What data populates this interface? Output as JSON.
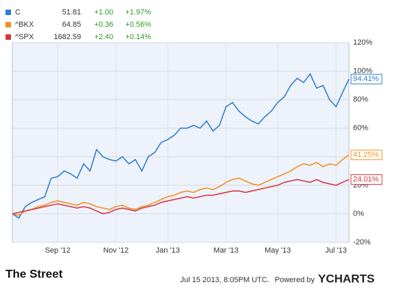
{
  "chart_data": {
    "type": "line",
    "categories": [
      null,
      null,
      null,
      null,
      null,
      null,
      null,
      "Sep '12",
      null,
      null,
      null,
      null,
      null,
      null,
      null,
      null,
      "Nov '12",
      null,
      null,
      null,
      null,
      null,
      null,
      null,
      "Jan '13",
      null,
      null,
      null,
      null,
      null,
      null,
      null,
      null,
      "Mar '13",
      null,
      null,
      null,
      null,
      null,
      null,
      null,
      "May '13",
      null,
      null,
      null,
      null,
      null,
      null,
      null,
      null,
      "Jul '13",
      null,
      null
    ],
    "series": [
      {
        "name": "C",
        "price": "51.81",
        "change": "+1.00",
        "change_pct": "+1.97%",
        "color": "#2a7fd0",
        "values": [
          0,
          -3,
          5,
          8,
          10,
          12,
          25,
          26,
          30,
          28,
          25,
          35,
          30,
          45,
          40,
          38,
          37,
          40,
          35,
          38,
          30,
          40,
          43,
          50,
          52,
          55,
          60,
          60,
          62,
          60,
          65,
          58,
          62,
          75,
          78,
          72,
          68,
          65,
          63,
          68,
          72,
          78,
          82,
          90,
          95,
          92,
          98,
          88,
          90,
          80,
          75,
          85,
          94.41
        ],
        "value_labels": [
          null,
          null,
          null,
          null,
          null,
          null,
          null,
          null,
          null,
          null,
          null,
          null,
          null,
          null,
          null,
          null,
          null,
          null,
          null,
          null,
          null,
          null,
          null,
          null,
          null,
          null,
          null,
          null,
          null,
          null,
          null,
          null,
          null,
          null,
          null,
          null,
          null,
          null,
          null,
          null,
          null,
          null,
          null,
          null,
          null,
          null,
          null,
          null,
          null,
          null,
          null,
          null,
          "94.41%"
        ]
      },
      {
        "name": "^BKX",
        "price": "64.85",
        "change": "+0.36",
        "change_pct": "+0.56%",
        "color": "#f0901e",
        "values": [
          0,
          -1,
          2,
          3,
          5,
          6,
          8,
          9,
          8,
          7,
          6,
          8,
          7,
          5,
          4,
          3,
          5,
          6,
          4,
          3,
          5,
          6,
          8,
          10,
          12,
          13,
          15,
          16,
          15,
          17,
          18,
          17,
          19,
          22,
          24,
          25,
          23,
          21,
          20,
          22,
          24,
          26,
          28,
          30,
          33,
          35,
          34,
          36,
          33,
          35,
          34,
          38,
          41.25
        ],
        "value_labels": [
          null,
          null,
          null,
          null,
          null,
          null,
          null,
          null,
          null,
          null,
          null,
          null,
          null,
          null,
          null,
          null,
          null,
          null,
          null,
          null,
          null,
          null,
          null,
          null,
          null,
          null,
          null,
          null,
          null,
          null,
          null,
          null,
          null,
          null,
          null,
          null,
          null,
          null,
          null,
          null,
          null,
          null,
          null,
          null,
          null,
          null,
          null,
          null,
          null,
          null,
          null,
          null,
          "41.25%"
        ]
      },
      {
        "name": "^SPX",
        "price": "1682.59",
        "change": "+2.40",
        "change_pct": "+0.14%",
        "color": "#d8353a",
        "values": [
          0,
          1,
          2,
          3,
          4,
          5,
          6,
          7,
          6,
          5,
          4,
          5,
          4,
          2,
          0,
          1,
          3,
          4,
          3,
          2,
          4,
          5,
          6,
          8,
          9,
          10,
          11,
          12,
          11,
          12,
          13,
          13,
          14,
          15,
          16,
          16,
          15,
          16,
          17,
          18,
          19,
          20,
          22,
          23,
          24,
          23,
          22,
          24,
          22,
          21,
          20,
          22,
          24.01
        ],
        "value_labels": [
          null,
          null,
          null,
          null,
          null,
          null,
          null,
          null,
          null,
          null,
          null,
          null,
          null,
          null,
          null,
          null,
          null,
          null,
          null,
          null,
          null,
          null,
          null,
          null,
          null,
          null,
          null,
          null,
          null,
          null,
          null,
          null,
          null,
          null,
          null,
          null,
          null,
          null,
          null,
          null,
          null,
          null,
          null,
          null,
          null,
          null,
          null,
          null,
          null,
          null,
          null,
          null,
          "24.01%"
        ]
      }
    ],
    "ylim": [
      -20,
      120
    ],
    "yticks": [
      {
        "value": -20,
        "label": "-20%"
      },
      {
        "value": 0,
        "label": "0%"
      },
      {
        "value": 20,
        "label": "20%"
      },
      {
        "value": 40,
        "label": "40%"
      },
      {
        "value": 60,
        "label": "60%"
      },
      {
        "value": 80,
        "label": "80%"
      },
      {
        "value": 100,
        "label": "100%"
      },
      {
        "value": 120,
        "label": "120%"
      }
    ],
    "grid": true,
    "change_color": "#2a9a2a",
    "footer": {
      "logo": "The Street",
      "timestamp": "Jul 15 2013, 8:05PM UTC.",
      "powered_by": "Powered by",
      "brand": "YCHARTS"
    }
  }
}
